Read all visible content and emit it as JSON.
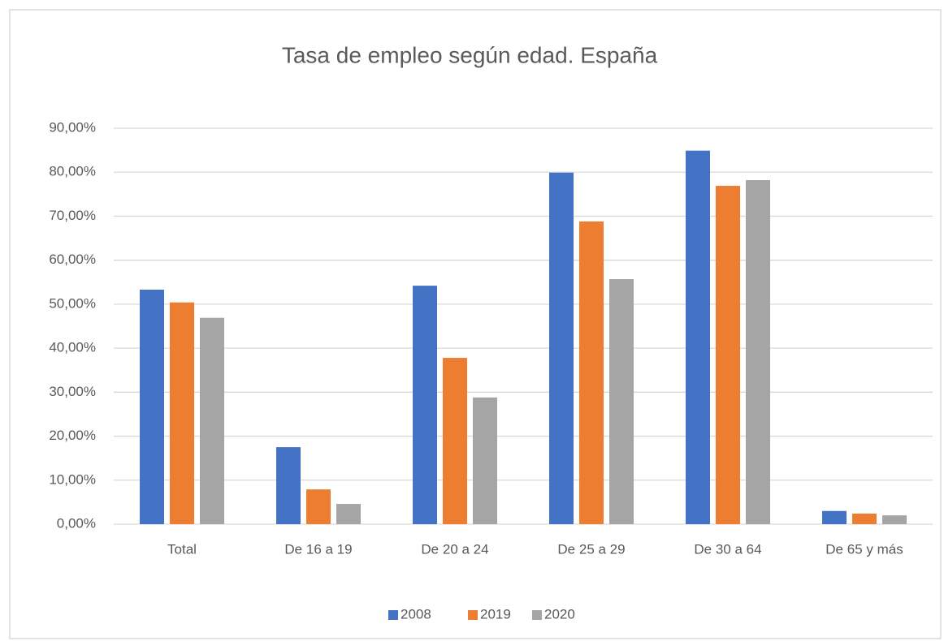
{
  "chart_data": {
    "type": "bar",
    "title": "Tasa de empleo según edad. España",
    "categories": [
      "Total",
      "De 16 a 19",
      "De 20 a 24",
      "De 25 a 29",
      "De 30 a 64",
      "De 65 y más"
    ],
    "series": [
      {
        "name": "2008",
        "color": "#4472c4",
        "values": [
          53.3,
          17.5,
          54.2,
          79.9,
          84.9,
          3.0
        ]
      },
      {
        "name": "2019",
        "color": "#ed7d31",
        "values": [
          50.4,
          7.9,
          37.8,
          68.8,
          76.9,
          2.4
        ]
      },
      {
        "name": "2020",
        "color": "#a5a5a5",
        "values": [
          46.9,
          4.6,
          28.8,
          55.7,
          78.2,
          2.0
        ]
      }
    ],
    "ylim": [
      0,
      90
    ],
    "yticks": [
      {
        "value": 0,
        "label": "0,00%"
      },
      {
        "value": 10,
        "label": "10,00%"
      },
      {
        "value": 20,
        "label": "20,00%"
      },
      {
        "value": 30,
        "label": "30,00%"
      },
      {
        "value": 40,
        "label": "40,00%"
      },
      {
        "value": 50,
        "label": "50,00%"
      },
      {
        "value": 60,
        "label": "60,00%"
      },
      {
        "value": 70,
        "label": "70,00%"
      },
      {
        "value": 80,
        "label": "80,00%"
      },
      {
        "value": 90,
        "label": "90,00%"
      }
    ],
    "grid": true,
    "legend": "bottom"
  }
}
